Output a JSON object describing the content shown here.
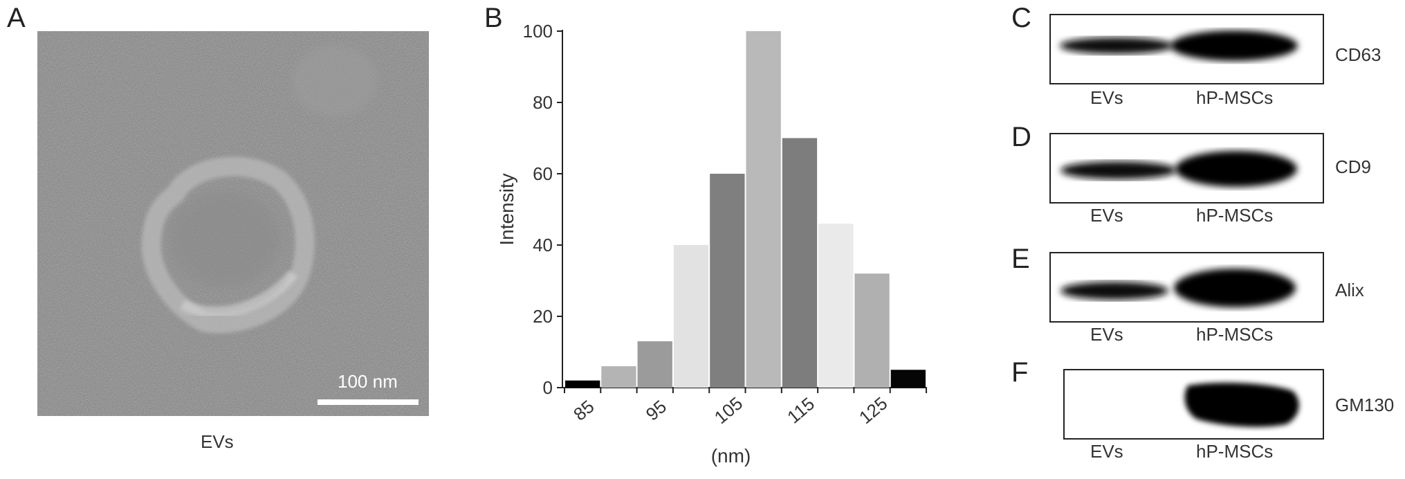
{
  "panels": {
    "a": {
      "letter": "A",
      "scale_bar_label": "100 nm",
      "caption": "EVs"
    },
    "b": {
      "letter": "B"
    },
    "c": {
      "letter": "C",
      "protein": "CD63",
      "lanes": [
        "EVs",
        "hP-MSCs"
      ]
    },
    "d": {
      "letter": "D",
      "protein": "CD9",
      "lanes": [
        "EVs",
        "hP-MSCs"
      ]
    },
    "e": {
      "letter": "E",
      "protein": "Alix",
      "lanes": [
        "EVs",
        "hP-MSCs"
      ]
    },
    "f": {
      "letter": "F",
      "protein": "GM130",
      "lanes": [
        "EVs",
        "hP-MSCs"
      ]
    }
  },
  "chart_data": {
    "type": "bar",
    "title": "",
    "xlabel": "(nm)",
    "ylabel": "Intensity",
    "x_tick_labels": [
      "85",
      "95",
      "105",
      "115",
      "125"
    ],
    "y_ticks": [
      0,
      20,
      40,
      60,
      80,
      100
    ],
    "ylim": [
      0,
      100
    ],
    "grid": false,
    "values": [
      2,
      6,
      13,
      40,
      60,
      100,
      70,
      46,
      32,
      5
    ],
    "bar_colors": [
      "#000000",
      "#b4b4b4",
      "#9b9b9b",
      "#e2e2e2",
      "#7f7f7f",
      "#b9b9b9",
      "#7d7d7d",
      "#eaeaea",
      "#b0b0b0",
      "#050505"
    ]
  },
  "blot_intensity": {
    "c": [
      0.85,
      0.95
    ],
    "d": [
      0.9,
      1.0
    ],
    "e": [
      0.9,
      1.0
    ],
    "f": [
      0.0,
      1.0
    ]
  }
}
